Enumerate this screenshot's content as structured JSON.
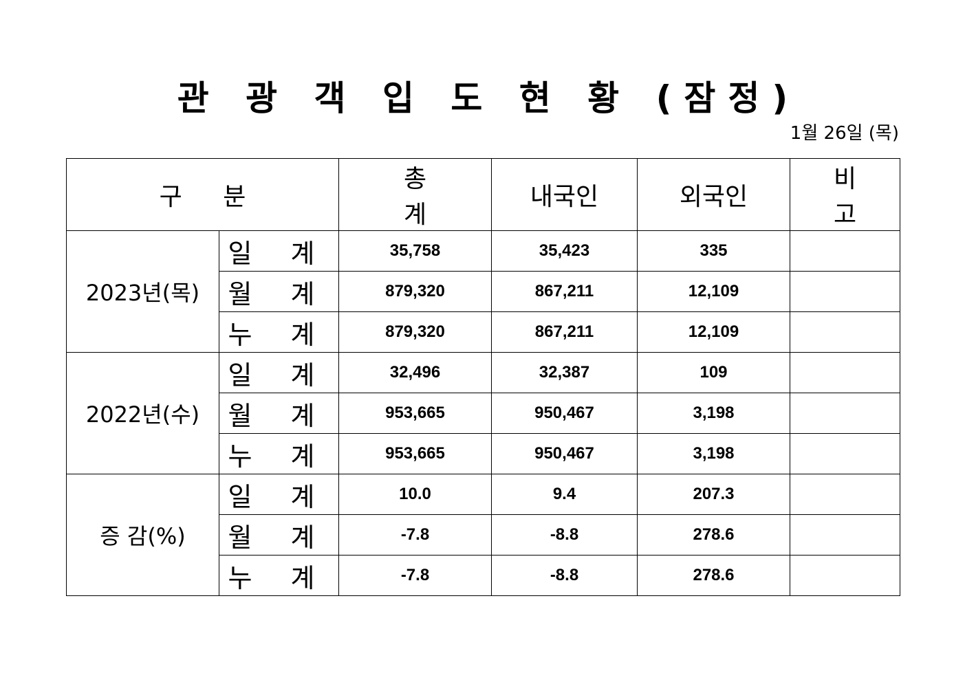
{
  "title": "관 광 객 입 도 현 황 (잠정)",
  "date": "1월 26일 (목)",
  "headers": {
    "category": "구 분",
    "total": "총 계",
    "domestic": "내국인",
    "foreign": "외국인",
    "remarks": "비 고"
  },
  "groups": [
    {
      "label": "2023년(목)",
      "rows": [
        {
          "label": "일 계",
          "total": "35,758",
          "domestic": "35,423",
          "foreign": "335",
          "remarks": ""
        },
        {
          "label": "월 계",
          "total": "879,320",
          "domestic": "867,211",
          "foreign": "12,109",
          "remarks": ""
        },
        {
          "label": "누 계",
          "total": "879,320",
          "domestic": "867,211",
          "foreign": "12,109",
          "remarks": ""
        }
      ]
    },
    {
      "label": "2022년(수)",
      "rows": [
        {
          "label": "일 계",
          "total": "32,496",
          "domestic": "32,387",
          "foreign": "109",
          "remarks": ""
        },
        {
          "label": "월 계",
          "total": "953,665",
          "domestic": "950,467",
          "foreign": "3,198",
          "remarks": ""
        },
        {
          "label": "누 계",
          "total": "953,665",
          "domestic": "950,467",
          "foreign": "3,198",
          "remarks": ""
        }
      ]
    },
    {
      "label": "증 감(%)",
      "rows": [
        {
          "label": "일 계",
          "total": "10.0",
          "domestic": "9.4",
          "foreign": "207.3",
          "remarks": ""
        },
        {
          "label": "월 계",
          "total": "-7.8",
          "domestic": "-8.8",
          "foreign": "278.6",
          "remarks": ""
        },
        {
          "label": "누 계",
          "total": "-7.8",
          "domestic": "-8.8",
          "foreign": "278.6",
          "remarks": ""
        }
      ]
    }
  ]
}
